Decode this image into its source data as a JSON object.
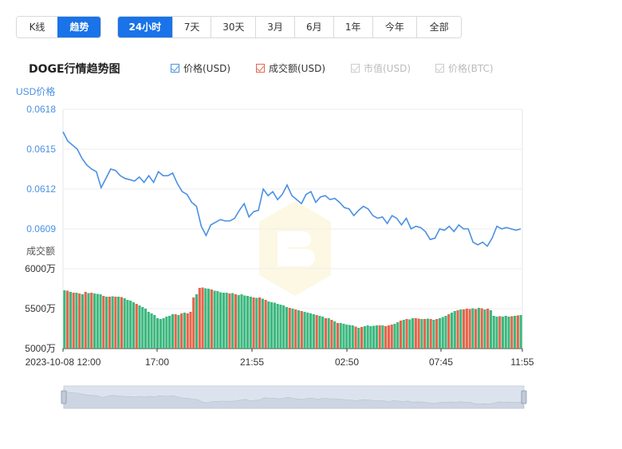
{
  "mode_tabs": [
    "K线",
    "趋势"
  ],
  "mode_active": 1,
  "range_tabs": [
    "24小时",
    "7天",
    "30天",
    "3月",
    "6月",
    "1年",
    "今年",
    "全部"
  ],
  "range_active": 0,
  "chart_title": "DOGE行情趋势图",
  "legend": [
    {
      "label": "价格(USD)",
      "checked": true,
      "color": "#4a90e2"
    },
    {
      "label": "成交额(USD)",
      "checked": true,
      "color": "#e5654b"
    },
    {
      "label": "市值(USD)",
      "checked": false,
      "color": "#cccccc"
    },
    {
      "label": "价格(BTC)",
      "checked": false,
      "color": "#cccccc"
    }
  ],
  "chart_data": [
    {
      "type": "line",
      "ylabel": "USD价格",
      "yticks": [
        "0.0618",
        "0.0615",
        "0.0612",
        "0.0609"
      ],
      "ylim": [
        0.0606,
        0.0618
      ],
      "x_ticks": [
        "2023-10-08 12:00",
        "17:00",
        "21:55",
        "02:50",
        "07:45",
        "11:55"
      ],
      "series": [
        {
          "color": "#4a90e2",
          "x": [
            0,
            1,
            2,
            3,
            4,
            5,
            6,
            7,
            8,
            9,
            10,
            11,
            12,
            13,
            14,
            15,
            16,
            17,
            18,
            19,
            20,
            21,
            22,
            23,
            24,
            25,
            26,
            27,
            28,
            29,
            30,
            31,
            32,
            33,
            34,
            35,
            36,
            37,
            38,
            39,
            40,
            41,
            42,
            43,
            44,
            45,
            46,
            47,
            48,
            49,
            50,
            51,
            52,
            53,
            54,
            55,
            56,
            57,
            58,
            59,
            60,
            61,
            62,
            63,
            64,
            65,
            66,
            67,
            68,
            69,
            70,
            71,
            72,
            73,
            74,
            75,
            76,
            77,
            78,
            79,
            80,
            81,
            82,
            83,
            84,
            85,
            86,
            87,
            88,
            89,
            90,
            91,
            92,
            93,
            94,
            95,
            96
          ],
          "values": [
            0.06163,
            0.06156,
            0.06153,
            0.0615,
            0.06143,
            0.06138,
            0.06135,
            0.06133,
            0.06121,
            0.06128,
            0.06135,
            0.06134,
            0.0613,
            0.06128,
            0.06127,
            0.06126,
            0.06129,
            0.06125,
            0.0613,
            0.06125,
            0.06133,
            0.0613,
            0.0613,
            0.06132,
            0.06124,
            0.06118,
            0.06116,
            0.0611,
            0.06107,
            0.06092,
            0.06085,
            0.06093,
            0.06095,
            0.06097,
            0.06096,
            0.06096,
            0.06098,
            0.06104,
            0.06109,
            0.06099,
            0.06103,
            0.06104,
            0.0612,
            0.06115,
            0.06118,
            0.06112,
            0.06116,
            0.06123,
            0.06115,
            0.06112,
            0.06109,
            0.06116,
            0.06118,
            0.0611,
            0.06114,
            0.06115,
            0.06112,
            0.06113,
            0.0611,
            0.06106,
            0.06105,
            0.061,
            0.06104,
            0.06107,
            0.06105,
            0.061,
            0.06098,
            0.06099,
            0.06094,
            0.061,
            0.06098,
            0.06093,
            0.06098,
            0.0609,
            0.06092,
            0.06091,
            0.06088,
            0.06082,
            0.06083,
            0.0609,
            0.06089,
            0.06092,
            0.06088,
            0.06093,
            0.0609,
            0.0609,
            0.0608,
            0.06078,
            0.0608,
            0.06077,
            0.06083,
            0.06092,
            0.0609,
            0.06091,
            0.0609,
            0.06089,
            0.0609
          ]
        }
      ]
    },
    {
      "type": "bar",
      "ylabel": "成交额",
      "yticks": [
        "6000万",
        "5500万",
        "5000万"
      ],
      "ylim": [
        5000,
        6000
      ],
      "colors": {
        "up": "#e5654b",
        "down": "#3db87f"
      },
      "values": [
        5730,
        5725,
        5710,
        5700,
        5700,
        5690,
        5680,
        5710,
        5695,
        5700,
        5690,
        5685,
        5680,
        5660,
        5650,
        5650,
        5655,
        5650,
        5650,
        5645,
        5630,
        5610,
        5600,
        5580,
        5560,
        5540,
        5520,
        5500,
        5460,
        5440,
        5420,
        5380,
        5370,
        5380,
        5400,
        5410,
        5430,
        5430,
        5420,
        5440,
        5450,
        5440,
        5460,
        5640,
        5680,
        5760,
        5765,
        5755,
        5750,
        5740,
        5725,
        5720,
        5705,
        5700,
        5700,
        5690,
        5695,
        5680,
        5670,
        5680,
        5665,
        5660,
        5650,
        5640,
        5635,
        5640,
        5625,
        5610,
        5590,
        5580,
        5575,
        5560,
        5550,
        5540,
        5520,
        5510,
        5500,
        5490,
        5480,
        5470,
        5460,
        5450,
        5440,
        5430,
        5420,
        5410,
        5400,
        5380,
        5380,
        5360,
        5340,
        5320,
        5320,
        5310,
        5300,
        5295,
        5290,
        5275,
        5260,
        5270,
        5280,
        5290,
        5280,
        5285,
        5290,
        5290,
        5290,
        5280,
        5290,
        5300,
        5310,
        5330,
        5350,
        5360,
        5370,
        5365,
        5380,
        5380,
        5375,
        5370,
        5370,
        5375,
        5370,
        5360,
        5370,
        5380,
        5395,
        5410,
        5430,
        5450,
        5470,
        5480,
        5490,
        5490,
        5500,
        5495,
        5505,
        5495,
        5510,
        5505,
        5490,
        5500,
        5480,
        5410,
        5400,
        5405,
        5400,
        5410,
        5400,
        5405,
        5410,
        5415,
        5420
      ],
      "up_flags": "0101010101000101010100001000000000000101011101100100000101000001010100000001010100001001010100000101000001011100101001101010100010010111010101000100010101100"
    }
  ]
}
